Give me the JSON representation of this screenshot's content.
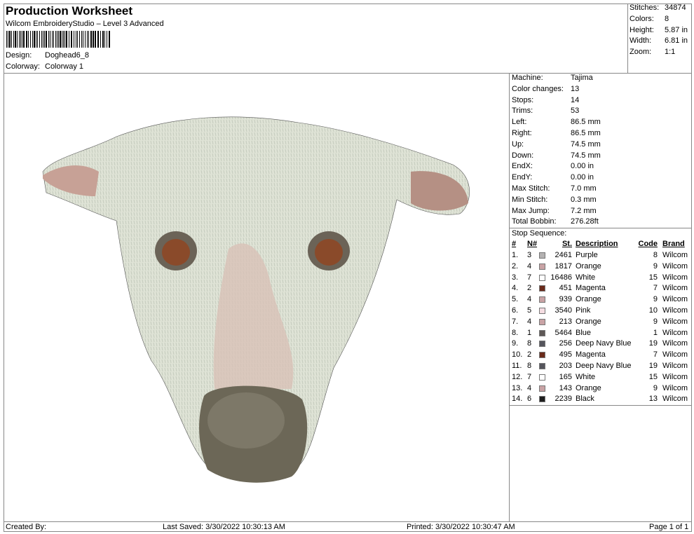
{
  "header": {
    "title": "Production Worksheet",
    "subtitle": "Wilcom EmbroideryStudio – Level 3 Advanced",
    "design_label": "Design:",
    "design_value": "Doghead6_8",
    "colorway_label": "Colorway:",
    "colorway_value": "Colorway 1"
  },
  "summary": [
    {
      "label": "Stitches:",
      "value": "34874"
    },
    {
      "label": "Colors:",
      "value": "8"
    },
    {
      "label": "Height:",
      "value": "5.87 in"
    },
    {
      "label": "Width:",
      "value": "6.81 in"
    },
    {
      "label": "Zoom:",
      "value": "1:1"
    }
  ],
  "machine_info": [
    {
      "label": "Machine:",
      "value": "Tajima"
    },
    {
      "label": "Color changes:",
      "value": "13"
    },
    {
      "label": "Stops:",
      "value": "14"
    },
    {
      "label": "Trims:",
      "value": "53"
    },
    {
      "label": "Left:",
      "value": "86.5 mm"
    },
    {
      "label": "Right:",
      "value": "86.5 mm"
    },
    {
      "label": "Up:",
      "value": "74.5 mm"
    },
    {
      "label": "Down:",
      "value": "74.5 mm"
    },
    {
      "label": "EndX:",
      "value": "0.00 in"
    },
    {
      "label": "EndY:",
      "value": "0.00 in"
    },
    {
      "label": "Max Stitch:",
      "value": "7.0 mm"
    },
    {
      "label": "Min Stitch:",
      "value": "0.3 mm"
    },
    {
      "label": "Max Jump:",
      "value": "7.2 mm"
    },
    {
      "label": "Total Bobbin:",
      "value": "276.28ft"
    }
  ],
  "stop_sequence": {
    "title": "Stop Sequence:",
    "headers": [
      "#",
      "N#",
      "St.",
      "Description",
      "Code",
      "Brand"
    ],
    "rows": [
      {
        "n": "1.",
        "needle": "3",
        "color": "#b4b2b2",
        "st": "2461",
        "desc": "Purple",
        "code": "8",
        "brand": "Wilcom"
      },
      {
        "n": "2.",
        "needle": "4",
        "color": "#c9a3a5",
        "st": "1817",
        "desc": "Orange",
        "code": "9",
        "brand": "Wilcom"
      },
      {
        "n": "3.",
        "needle": "7",
        "color": "#ffffff",
        "st": "16486",
        "desc": "White",
        "code": "15",
        "brand": "Wilcom"
      },
      {
        "n": "4.",
        "needle": "2",
        "color": "#6a2a1a",
        "st": "451",
        "desc": "Magenta",
        "code": "7",
        "brand": "Wilcom"
      },
      {
        "n": "5.",
        "needle": "4",
        "color": "#c9a3a5",
        "st": "939",
        "desc": "Orange",
        "code": "9",
        "brand": "Wilcom"
      },
      {
        "n": "6.",
        "needle": "5",
        "color": "#f5dde2",
        "st": "3540",
        "desc": "Pink",
        "code": "10",
        "brand": "Wilcom"
      },
      {
        "n": "7.",
        "needle": "4",
        "color": "#c9a3a5",
        "st": "213",
        "desc": "Orange",
        "code": "9",
        "brand": "Wilcom"
      },
      {
        "n": "8.",
        "needle": "1",
        "color": "#5e5856",
        "st": "5464",
        "desc": "Blue",
        "code": "1",
        "brand": "Wilcom"
      },
      {
        "n": "9.",
        "needle": "8",
        "color": "#55555c",
        "st": "256",
        "desc": "Deep Navy Blue",
        "code": "19",
        "brand": "Wilcom"
      },
      {
        "n": "10.",
        "needle": "2",
        "color": "#6a2a1a",
        "st": "495",
        "desc": "Magenta",
        "code": "7",
        "brand": "Wilcom"
      },
      {
        "n": "11.",
        "needle": "8",
        "color": "#55555c",
        "st": "203",
        "desc": "Deep Navy Blue",
        "code": "19",
        "brand": "Wilcom"
      },
      {
        "n": "12.",
        "needle": "7",
        "color": "#ffffff",
        "st": "165",
        "desc": "White",
        "code": "15",
        "brand": "Wilcom"
      },
      {
        "n": "13.",
        "needle": "4",
        "color": "#c9a3a5",
        "st": "143",
        "desc": "Orange",
        "code": "9",
        "brand": "Wilcom"
      },
      {
        "n": "14.",
        "needle": "6",
        "color": "#1e1e1e",
        "st": "2239",
        "desc": "Black",
        "code": "13",
        "brand": "Wilcom"
      }
    ]
  },
  "footer": {
    "created": "Created By:",
    "saved": "Last Saved: 3/30/2022 10:30:13 AM",
    "printed": "Printed: 3/30/2022 10:30:47 AM",
    "page": "Page 1 of 1"
  }
}
